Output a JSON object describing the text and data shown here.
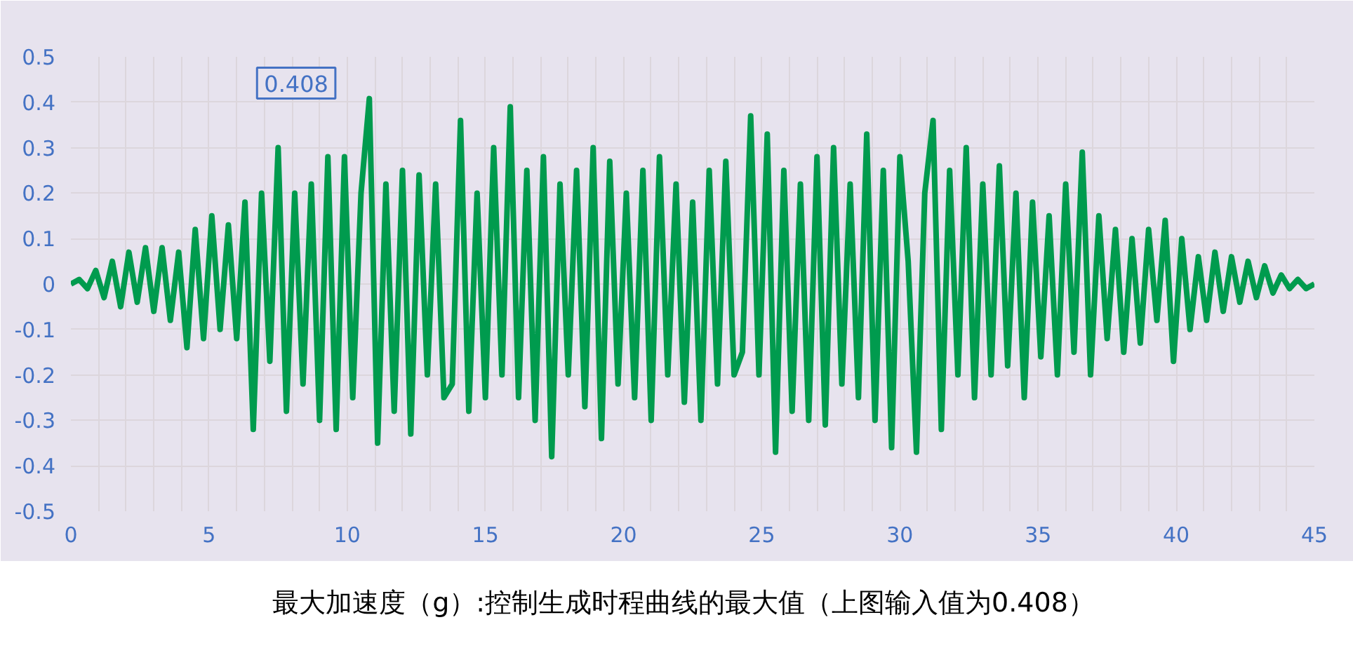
{
  "chart_data": {
    "type": "line",
    "x": [
      0,
      0.3,
      0.6,
      0.9,
      1.2,
      1.5,
      1.8,
      2.1,
      2.4,
      2.7,
      3,
      3.3,
      3.6,
      3.9,
      4.2,
      4.5,
      4.8,
      5.1,
      5.4,
      5.7,
      6,
      6.3,
      6.6,
      6.9,
      7.2,
      7.5,
      7.8,
      8.1,
      8.4,
      8.7,
      9,
      9.3,
      9.6,
      9.9,
      10.2,
      10.5,
      10.8,
      11.1,
      11.4,
      11.7,
      12,
      12.3,
      12.6,
      12.9,
      13.2,
      13.5,
      13.8,
      14.1,
      14.4,
      14.7,
      15,
      15.3,
      15.6,
      15.9,
      16.2,
      16.5,
      16.8,
      17.1,
      17.4,
      17.7,
      18,
      18.3,
      18.6,
      18.9,
      19.2,
      19.5,
      19.8,
      20.1,
      20.4,
      20.7,
      21,
      21.3,
      21.6,
      21.9,
      22.2,
      22.5,
      22.8,
      23.1,
      23.4,
      23.7,
      24,
      24.3,
      24.6,
      24.9,
      25.2,
      25.5,
      25.8,
      26.1,
      26.4,
      26.7,
      27,
      27.3,
      27.6,
      27.9,
      28.2,
      28.5,
      28.8,
      29.1,
      29.4,
      29.7,
      30,
      30.3,
      30.6,
      30.9,
      31.2,
      31.5,
      31.8,
      32.1,
      32.4,
      32.7,
      33,
      33.3,
      33.6,
      33.9,
      34.2,
      34.5,
      34.8,
      35.1,
      35.4,
      35.7,
      36,
      36.3,
      36.6,
      36.9,
      37.2,
      37.5,
      37.8,
      38.1,
      38.4,
      38.7,
      39,
      39.3,
      39.6,
      39.9,
      40.2,
      40.5,
      40.8,
      41.1,
      41.4,
      41.7,
      42,
      42.3,
      42.6,
      42.9,
      43.2,
      43.5,
      43.8,
      44.1,
      44.4,
      44.7,
      45
    ],
    "series": [
      {
        "color": "#009b4e",
        "values": [
          0,
          0.01,
          -0.01,
          0.03,
          -0.03,
          0.05,
          -0.05,
          0.07,
          -0.04,
          0.08,
          -0.06,
          0.08,
          -0.08,
          0.07,
          -0.14,
          0.12,
          -0.12,
          0.15,
          -0.1,
          0.13,
          -0.12,
          0.18,
          -0.32,
          0.2,
          -0.17,
          0.3,
          -0.28,
          0.2,
          -0.22,
          0.22,
          -0.3,
          0.28,
          -0.32,
          0.28,
          -0.25,
          0.2,
          0.408,
          -0.35,
          0.22,
          -0.28,
          0.25,
          -0.33,
          0.24,
          -0.2,
          0.22,
          -0.25,
          -0.22,
          0.36,
          -0.28,
          0.2,
          -0.25,
          0.3,
          -0.2,
          0.39,
          -0.25,
          0.25,
          -0.3,
          0.28,
          -0.38,
          0.22,
          -0.2,
          0.25,
          -0.27,
          0.3,
          -0.34,
          0.27,
          -0.22,
          0.2,
          -0.25,
          0.25,
          -0.3,
          0.28,
          -0.2,
          0.22,
          -0.26,
          0.18,
          -0.3,
          0.25,
          -0.22,
          0.27,
          -0.2,
          -0.15,
          0.37,
          -0.2,
          0.33,
          -0.37,
          0.25,
          -0.28,
          0.22,
          -0.3,
          0.28,
          -0.31,
          0.3,
          -0.22,
          0.22,
          -0.25,
          0.33,
          -0.3,
          0.25,
          -0.36,
          0.28,
          0.05,
          -0.37,
          0.2,
          0.36,
          -0.32,
          0.25,
          -0.2,
          0.3,
          -0.25,
          0.22,
          -0.2,
          0.26,
          -0.18,
          0.2,
          -0.25,
          0.18,
          -0.16,
          0.15,
          -0.2,
          0.22,
          -0.15,
          0.29,
          -0.2,
          0.15,
          -0.12,
          0.12,
          -0.15,
          0.1,
          -0.13,
          0.12,
          -0.08,
          0.14,
          -0.17,
          0.1,
          -0.1,
          0.06,
          -0.08,
          0.07,
          -0.06,
          0.06,
          -0.04,
          0.05,
          -0.03,
          0.04,
          -0.02,
          0.02,
          -0.01,
          0.01,
          -0.01,
          0
        ]
      }
    ],
    "xlim": [
      0,
      45
    ],
    "ylim": [
      -0.5,
      0.5
    ],
    "xticks": [
      0,
      5,
      10,
      15,
      20,
      25,
      30,
      35,
      40,
      45
    ],
    "yticks": [
      0.5,
      0.4,
      0.3,
      0.2,
      0.1,
      0,
      -0.1,
      -0.2,
      -0.3,
      -0.4,
      -0.5
    ],
    "grid": true,
    "marker": "none",
    "line_style": "solid",
    "annotations": [
      {
        "text": "0.408",
        "x": 10.8,
        "y": 0.408
      },
      "最大加速度（g）:控制生成时程曲线的最大值（上图输入值为0.408）"
    ]
  }
}
